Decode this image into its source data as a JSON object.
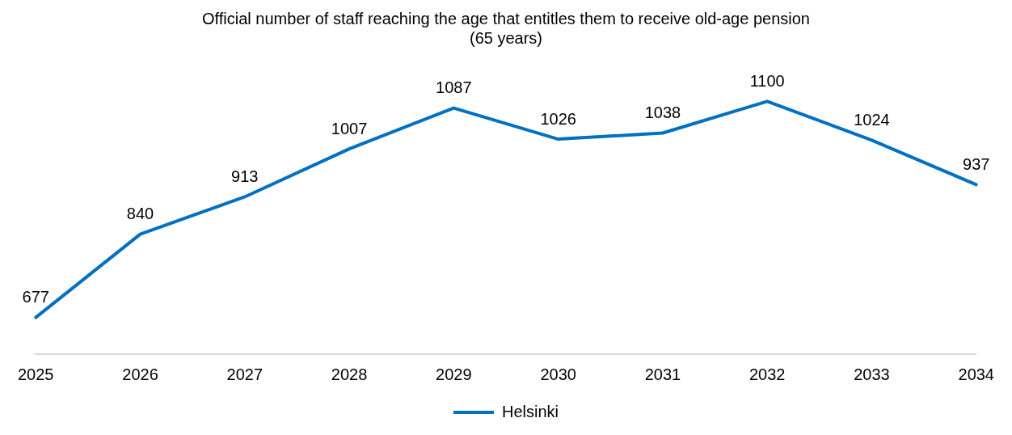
{
  "chart_data": {
    "type": "line",
    "title": "Official number of staff reaching the age that entitles them to receive old-age pension\n(65 years)",
    "categories": [
      "2025",
      "2026",
      "2027",
      "2028",
      "2029",
      "2030",
      "2031",
      "2032",
      "2033",
      "2034"
    ],
    "series": [
      {
        "name": "Helsinki",
        "color": "#0070c0",
        "values": [
          677,
          840,
          913,
          1007,
          1087,
          1026,
          1038,
          1100,
          1024,
          937
        ]
      }
    ],
    "data_labels": true,
    "legend": "bottom",
    "grid": false,
    "marker": "none",
    "line_style": "solid"
  }
}
